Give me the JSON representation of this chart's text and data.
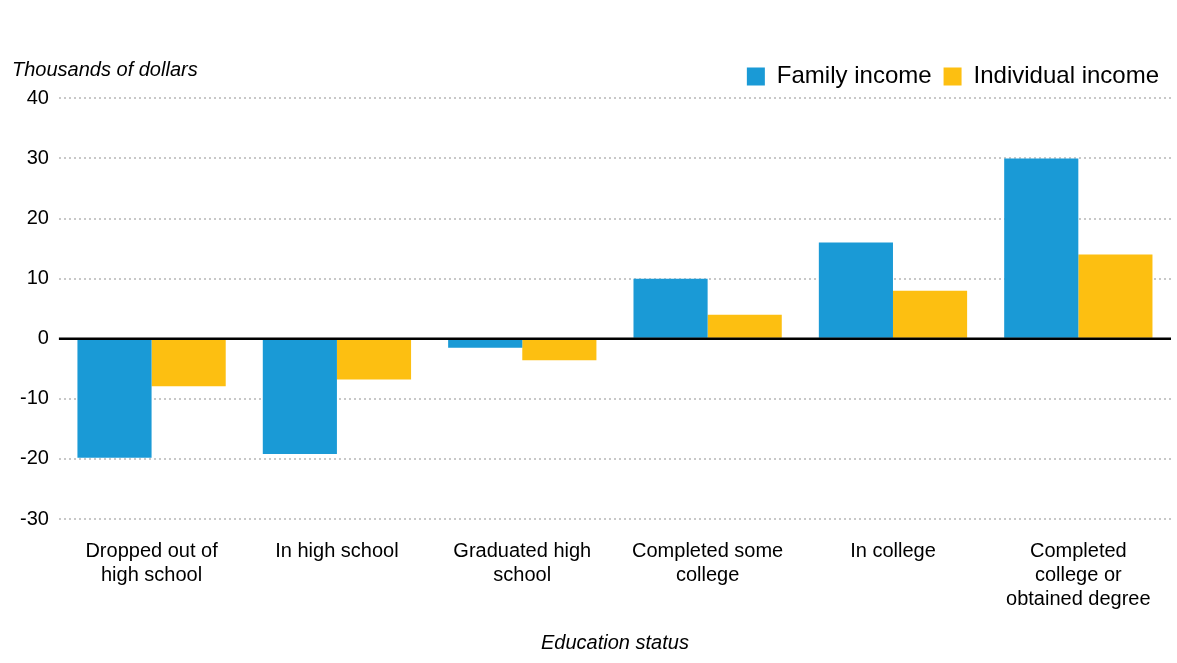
{
  "chart_data": {
    "type": "bar",
    "xlabel": "Education status",
    "ylabel": "Thousands of dollars",
    "categories": [
      "Dropped out of high school",
      "In high school",
      "Graduated high school",
      "Completed some college",
      "In college",
      "Completed college or obtained degree"
    ],
    "series": [
      {
        "name": "Family income",
        "color": "#1a9ad6",
        "values": [
          -19.8,
          -19.2,
          -1.5,
          10,
          16,
          30
        ]
      },
      {
        "name": "Individual income",
        "color": "#fdbf11",
        "values": [
          -7.9,
          -6.8,
          -3.6,
          4,
          8,
          14
        ]
      }
    ],
    "ylim": [
      -30,
      40
    ],
    "yticks": [
      -30,
      -20,
      -10,
      0,
      10,
      20,
      30,
      40
    ],
    "grid": "y",
    "legend": "top right"
  }
}
